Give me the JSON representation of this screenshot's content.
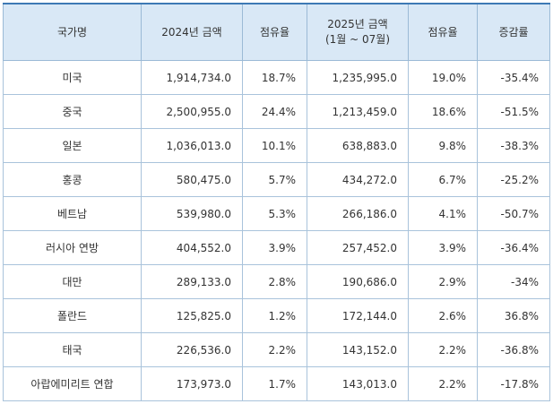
{
  "table": {
    "headers": {
      "country": "국가명",
      "amount_2024": "2024년 금액",
      "share_2024": "점유율",
      "amount_2025_line1": "2025년 금액",
      "amount_2025_line2": "(1월 ~ 07월)",
      "share_2025": "점유율",
      "change": "증감률"
    },
    "rows": [
      {
        "country": "미국",
        "amount_2024": "1,914,734.0",
        "share_2024": "18.7%",
        "amount_2025": "1,235,995.0",
        "share_2025": "19.0%",
        "change": "-35.4%"
      },
      {
        "country": "중국",
        "amount_2024": "2,500,955.0",
        "share_2024": "24.4%",
        "amount_2025": "1,213,459.0",
        "share_2025": "18.6%",
        "change": "-51.5%"
      },
      {
        "country": "일본",
        "amount_2024": "1,036,013.0",
        "share_2024": "10.1%",
        "amount_2025": "638,883.0",
        "share_2025": "9.8%",
        "change": "-38.3%"
      },
      {
        "country": "홍콩",
        "amount_2024": "580,475.0",
        "share_2024": "5.7%",
        "amount_2025": "434,272.0",
        "share_2025": "6.7%",
        "change": "-25.2%"
      },
      {
        "country": "베트남",
        "amount_2024": "539,980.0",
        "share_2024": "5.3%",
        "amount_2025": "266,186.0",
        "share_2025": "4.1%",
        "change": "-50.7%"
      },
      {
        "country": "러시아 연방",
        "amount_2024": "404,552.0",
        "share_2024": "3.9%",
        "amount_2025": "257,452.0",
        "share_2025": "3.9%",
        "change": "-36.4%"
      },
      {
        "country": "대만",
        "amount_2024": "289,133.0",
        "share_2024": "2.8%",
        "amount_2025": "190,686.0",
        "share_2025": "2.9%",
        "change": "-34%"
      },
      {
        "country": "폴란드",
        "amount_2024": "125,825.0",
        "share_2024": "1.2%",
        "amount_2025": "172,144.0",
        "share_2025": "2.6%",
        "change": "36.8%"
      },
      {
        "country": "태국",
        "amount_2024": "226,536.0",
        "share_2024": "2.2%",
        "amount_2025": "143,152.0",
        "share_2025": "2.2%",
        "change": "-36.8%"
      },
      {
        "country": "아랍에미리트 연합",
        "amount_2024": "173,973.0",
        "share_2024": "1.7%",
        "amount_2025": "143,013.0",
        "share_2025": "2.2%",
        "change": "-17.8%"
      }
    ]
  },
  "colors": {
    "header_bg": "#d9e8f6",
    "header_top_border": "#3d79b5",
    "grid_border": "#a9c3db",
    "text": "#333333"
  }
}
